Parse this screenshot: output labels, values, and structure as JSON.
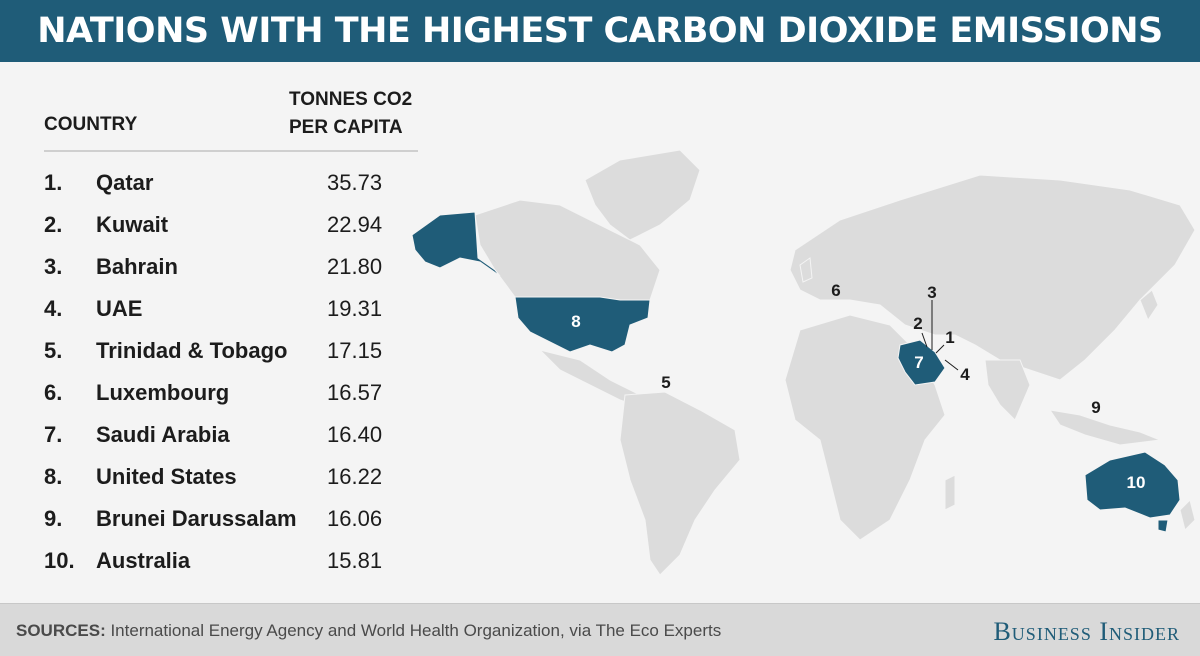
{
  "title": "NATIONS WITH THE HIGHEST CARBON DIOXIDE EMISSIONS",
  "table": {
    "header_country": "COUNTRY",
    "header_value_line1": "TONNES CO2",
    "header_value_line2": "PER CAPITA",
    "rows": [
      {
        "rank": "1.",
        "country": "Qatar",
        "value": "35.73"
      },
      {
        "rank": "2.",
        "country": "Kuwait",
        "value": "22.94"
      },
      {
        "rank": "3.",
        "country": "Bahrain",
        "value": "21.80"
      },
      {
        "rank": "4.",
        "country": "UAE",
        "value": "19.31"
      },
      {
        "rank": "5.",
        "country": "Trinidad & Tobago",
        "value": "17.15"
      },
      {
        "rank": "6.",
        "country": "Luxembourg",
        "value": "16.57"
      },
      {
        "rank": "7.",
        "country": "Saudi Arabia",
        "value": "16.40"
      },
      {
        "rank": "8.",
        "country": "United States",
        "value": "16.22"
      },
      {
        "rank": "9.",
        "country": "Brunei Darussalam",
        "value": "16.06"
      },
      {
        "rank": "10.",
        "country": "Australia",
        "value": "15.81"
      }
    ]
  },
  "map": {
    "labels": [
      "1",
      "2",
      "3",
      "4",
      "5",
      "6",
      "7",
      "8",
      "9",
      "10"
    ],
    "land_color": "#dcdcdc",
    "highlight_color": "#1f5c78"
  },
  "footer": {
    "sources_label": "SOURCES:",
    "sources_text": " International Energy Agency and World Health Organization, via The Eco Experts",
    "brand": "Business Insider"
  }
}
